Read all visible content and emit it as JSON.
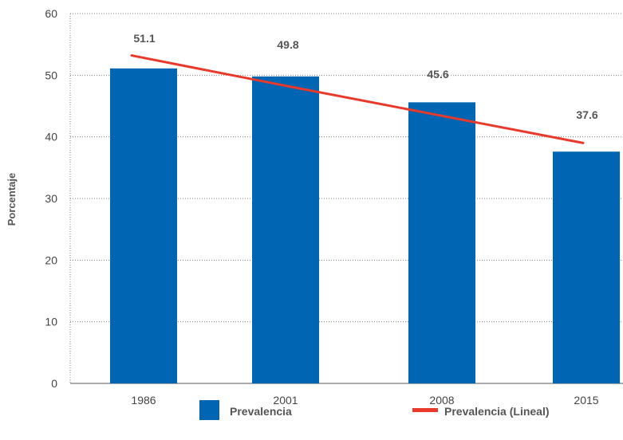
{
  "chart_data": {
    "type": "bar",
    "categories": [
      "1986",
      "2001",
      "2008",
      "2015"
    ],
    "series": [
      {
        "name": "Prevalencia",
        "type": "bar",
        "color": "#0066b3",
        "values": [
          51.1,
          49.8,
          45.6,
          37.6
        ]
      },
      {
        "name": "Prevalencia (Lineal)",
        "type": "line",
        "color": "#e8392a",
        "values": [
          53.2,
          48.4,
          43.7,
          39.0
        ]
      }
    ],
    "data_labels": [
      "51.1",
      "49.8",
      "45.6",
      "37.6"
    ],
    "ylabel": "Porcentaje",
    "xlabel": "",
    "ylim": [
      0,
      60
    ],
    "yticks": [
      0,
      10,
      20,
      30,
      40,
      50,
      60
    ],
    "grid": "horizontal-dotted",
    "legend_position": "bottom"
  }
}
